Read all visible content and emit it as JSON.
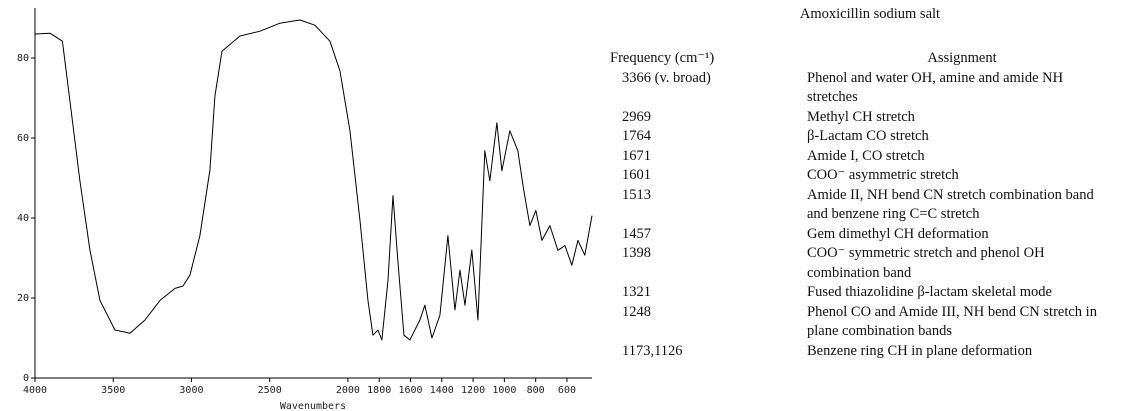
{
  "chart_data": {
    "type": "line",
    "xlabel": "Wavenumbers",
    "x": [
      4000,
      3904,
      3825,
      3808,
      3776,
      3712,
      3649,
      3585,
      3489,
      3393,
      3297,
      3201,
      3105,
      3054,
      3010,
      2946,
      2882,
      2850,
      2805,
      2690,
      2562,
      2435,
      2307,
      2211,
      2115,
      2051,
      1987,
      1923,
      1872,
      1840,
      1808,
      1783,
      1744,
      1712,
      1681,
      1642,
      1604,
      1540,
      1508,
      1463,
      1412,
      1361,
      1316,
      1284,
      1252,
      1208,
      1169,
      1125,
      1093,
      1048,
      1016,
      965,
      914,
      876,
      837,
      799,
      760,
      709,
      658,
      613,
      569,
      530,
      486,
      440
    ],
    "values": [
      86,
      86.2,
      84.2,
      79,
      69,
      49,
      32,
      19.4,
      12,
      11.2,
      14.5,
      19.4,
      22.4,
      23,
      25.7,
      35.6,
      52,
      70.5,
      81.7,
      85.5,
      86.7,
      88.7,
      89.5,
      88.2,
      84.2,
      76.8,
      61.8,
      39.4,
      19.4,
      10.7,
      12,
      9.5,
      24.4,
      45.6,
      29.4,
      10.7,
      9.5,
      14.5,
      18.2,
      10,
      15.7,
      35.6,
      17,
      27,
      18.2,
      32,
      14.5,
      56.8,
      49.3,
      63.8,
      51.8,
      61.8,
      56.8,
      46.9,
      38.1,
      41.9,
      34.4,
      38.1,
      31.9,
      33.1,
      28.2,
      34.4,
      30.7,
      40.6
    ],
    "color": "#000000",
    "xlim": [
      4000,
      440
    ],
    "ylim": [
      0,
      92
    ],
    "xticks": [
      4000,
      3500,
      3000,
      2500,
      2000,
      1800,
      1600,
      1400,
      1200,
      1000,
      800,
      600
    ],
    "yticks": [
      0,
      20,
      40,
      60,
      80
    ]
  },
  "table": {
    "title": "Amoxicillin sodium salt",
    "header": [
      "Frequency (cm⁻¹)",
      "Assignment"
    ],
    "rows": [
      [
        "3366 (v. broad)",
        "Phenol and water OH, amine and amide NH stretches"
      ],
      [
        "2969",
        "Methyl CH stretch"
      ],
      [
        "1764",
        "β-Lactam CO stretch"
      ],
      [
        "1671",
        "Amide I, CO stretch"
      ],
      [
        "1601",
        "COO⁻ asymmetric stretch"
      ],
      [
        "1513",
        "Amide II, NH bend CN stretch combination band and benzene ring C=C stretch"
      ],
      [
        "1457",
        "Gem dimethyl CH deformation"
      ],
      [
        "1398",
        "COO⁻ symmetric stretch and phenol OH combination band"
      ],
      [
        "1321",
        "Fused thiazolidine β-lactam skeletal mode"
      ],
      [
        "1248",
        "Phenol CO and Amide III, NH bend CN stretch in plane combination bands"
      ],
      [
        "1173,1126",
        "Benzene ring CH in plane deformation"
      ]
    ]
  }
}
